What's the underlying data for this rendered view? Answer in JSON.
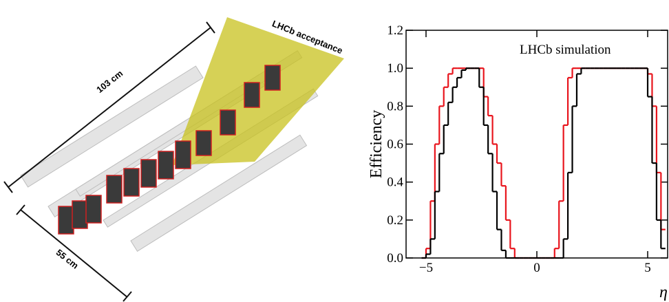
{
  "illustration": {
    "acceptance_label": "LHCb acceptance",
    "length_label": "103 cm",
    "width_label": "55 cm"
  },
  "chart_data": {
    "type": "histogram",
    "ylabel": "Efficiency",
    "xlabel": "η",
    "annotation": "LHCb simulation",
    "xlim": [
      -5.9,
      5.9
    ],
    "ylim": [
      0,
      1.2
    ],
    "xticks": [
      {
        "value": -5,
        "label": "−5"
      },
      0,
      5
    ],
    "yticks": [
      {
        "value": 0,
        "label": "0.0"
      },
      0.2,
      0.4,
      0.6,
      0.8,
      {
        "value": 1,
        "label": "1.0"
      },
      1.2
    ],
    "bins": [
      -5.2,
      -5.0,
      -4.8,
      -4.6,
      -4.4,
      -4.2,
      -4.0,
      -3.8,
      -3.6,
      -3.4,
      -3.2,
      -3.0,
      -2.8,
      -2.6,
      -2.4,
      -2.2,
      -2.0,
      -1.8,
      -1.6,
      -1.4,
      -1.2,
      -1.0,
      -0.8,
      -0.6,
      -0.4,
      -0.2,
      0,
      0.2,
      0.4,
      0.6,
      0.8,
      1.0,
      1.2,
      1.4,
      1.6,
      1.8,
      2.0,
      2.2,
      2.4,
      2.6,
      2.8,
      3.0,
      3.2,
      3.4,
      3.6,
      3.8,
      4.0,
      4.2,
      4.4,
      4.6,
      4.8,
      5.0,
      5.2,
      5.4,
      5.6,
      5.8
    ],
    "series": [
      {
        "color": "#e8141c",
        "values": [
          0,
          0.05,
          0.3,
          0.6,
          0.8,
          0.9,
          0.97,
          1,
          1,
          1,
          1,
          1,
          1,
          1,
          0.85,
          0.75,
          0.6,
          0.5,
          0.38,
          0.2,
          0.05,
          0,
          0,
          0,
          0,
          0,
          0,
          0,
          0,
          0,
          0.05,
          0.3,
          0.7,
          0.95,
          1,
          1,
          1,
          1,
          1,
          1,
          1,
          1,
          1,
          1,
          1,
          1,
          1,
          1,
          1,
          1,
          1,
          0.97,
          0.8,
          0.45,
          0.15
        ]
      },
      {
        "color": "#000000",
        "values": [
          0,
          0.02,
          0.1,
          0.35,
          0.55,
          0.7,
          0.82,
          0.9,
          0.95,
          0.99,
          1,
          1,
          1,
          0.9,
          0.7,
          0.55,
          0.35,
          0.15,
          0.04,
          0,
          0,
          0,
          0,
          0,
          0,
          0,
          0,
          0,
          0,
          0,
          0,
          0,
          0.1,
          0.45,
          0.8,
          0.97,
          1,
          1,
          1,
          1,
          1,
          1,
          1,
          1,
          1,
          1,
          1,
          1,
          1,
          1,
          1,
          0.85,
          0.5,
          0.2,
          0.05
        ]
      }
    ]
  }
}
